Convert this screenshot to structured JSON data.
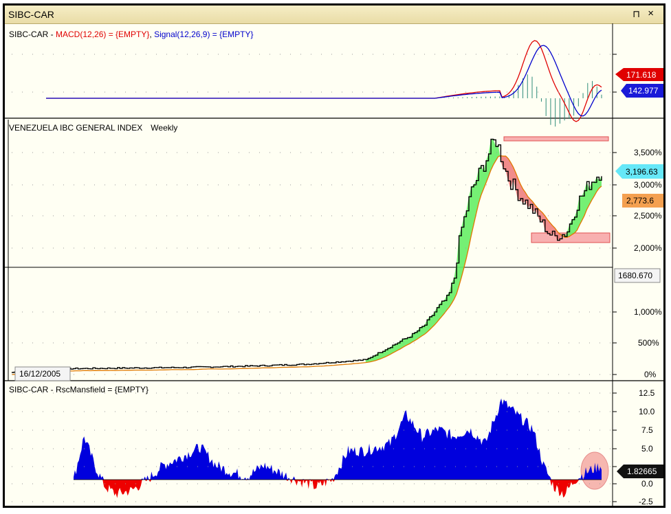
{
  "window": {
    "title": "SIBC-CAR",
    "pin_icon": "⊓",
    "close_icon": "×"
  },
  "macd_panel": {
    "legend": {
      "prefix": "SIBC-CAR - ",
      "macd": "MACD(12,26) = {EMPTY}",
      "separator": ", ",
      "signal": "Signal(12,26,9) = {EMPTY}"
    },
    "colors": {
      "macd": "#e00000",
      "signal": "#0000cc",
      "histogram": "#2e8b7a"
    },
    "badges": {
      "macd_value": "171.618",
      "signal_value": "142.977"
    }
  },
  "price_panel": {
    "title": "VENEZUELA IBC GENERAL INDEX",
    "period": "Weekly",
    "y_labels": [
      "3,500%",
      "3,000%",
      "2,500%",
      "2,000%",
      "1,000%",
      "500%",
      "0%"
    ],
    "badges": {
      "last": "3,196.63",
      "average": "2,773.6",
      "crosshair": "1680.670",
      "date": "16/12/2005"
    },
    "colors": {
      "price": "#000000",
      "average": "#e07800",
      "fill_up": "#66ee66",
      "fill_down": "#f08080",
      "highlight_box": "#f8b0b0"
    }
  },
  "rsc_panel": {
    "legend": "SIBC-CAR - RscMansfield = {EMPTY}",
    "y_labels": [
      "12.5",
      "10.0",
      "7.5",
      "5.0",
      "0.0",
      "-2.5"
    ],
    "badge": "1.82665",
    "colors": {
      "positive": "#0000dd",
      "negative": "#ee0000",
      "circle": "#f4a6a0"
    }
  },
  "chart_data": {
    "type": "line",
    "price_series_pct_change": {
      "x_fraction": [
        0,
        0.05,
        0.1,
        0.2,
        0.3,
        0.4,
        0.5,
        0.6,
        0.64,
        0.68,
        0.7,
        0.72,
        0.74,
        0.75,
        0.76,
        0.78,
        0.8,
        0.82,
        0.84,
        0.86,
        0.88,
        0.9,
        0.91,
        0.92,
        0.94,
        0.96,
        0.98,
        1
      ],
      "values": [
        0,
        50,
        60,
        70,
        80,
        100,
        130,
        200,
        400,
        600,
        750,
        1000,
        1200,
        1500,
        2200,
        2900,
        3300,
        3700,
        3100,
        2800,
        2600,
        2350,
        2200,
        2150,
        2200,
        2700,
        3000,
        3200
      ]
    },
    "y_axis_labels": [
      "3,500%",
      "3,000%",
      "2,500%",
      "2,000%",
      "1,000%",
      "500%",
      "0%"
    ],
    "rsc_mansfield_range": [
      -2.5,
      12.5
    ]
  }
}
